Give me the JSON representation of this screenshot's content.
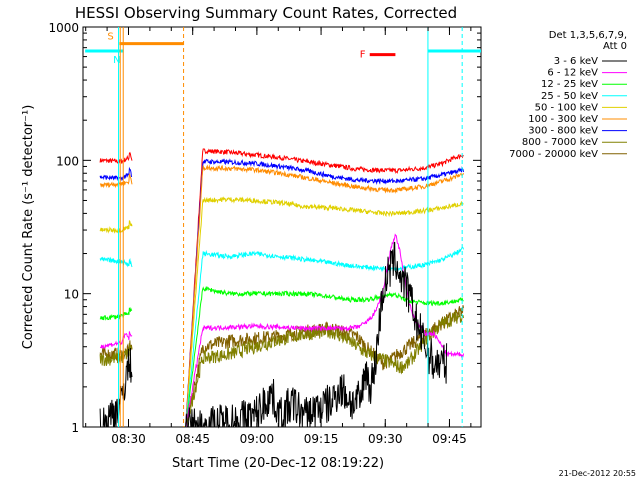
{
  "chart_data": {
    "type": "line",
    "title": "HESSI Observing Summary Count Rates, Corrected",
    "xlabel": "Start Time (20-Dec-12 08:19:22)",
    "ylabel": "Corrected Count Rate (s⁻¹ detector⁻¹)",
    "yscale": "log",
    "ylim": [
      1,
      1000
    ],
    "xlim_minutes": [
      0,
      93
    ],
    "xticks": [
      {
        "label": "08:30",
        "min": 10.63
      },
      {
        "label": "08:45",
        "min": 25.63
      },
      {
        "label": "09:00",
        "min": 40.63
      },
      {
        "label": "09:15",
        "min": 55.63
      },
      {
        "label": "09:30",
        "min": 70.63
      },
      {
        "label": "09:45",
        "min": 85.63
      }
    ],
    "yticks": [
      {
        "label": "1",
        "v": 1
      },
      {
        "label": "10",
        "v": 10
      },
      {
        "label": "100",
        "v": 100
      },
      {
        "label": "1000",
        "v": 1000
      }
    ],
    "legend_header": [
      "Det 1,3,5,6,7,9,",
      "Att 0"
    ],
    "legend_placement": "right",
    "series": [
      {
        "name": "3 - 6 keV",
        "color": "#000000",
        "x": [
          4,
          9,
          10,
          11,
          24,
          28,
          40,
          41,
          44,
          46,
          49,
          52,
          55,
          58,
          60,
          63,
          65,
          66,
          67,
          68,
          69,
          70,
          71,
          72,
          73,
          74,
          75,
          76,
          77,
          78,
          80,
          82,
          84,
          85
        ],
        "y": [
          1,
          1.5,
          2.5,
          3,
          1,
          1,
          1.2,
          1.3,
          1.8,
          1.2,
          1.5,
          1.2,
          1.4,
          1.5,
          2,
          1.5,
          1.6,
          2.8,
          2,
          2.5,
          5,
          10,
          13,
          16,
          18,
          14,
          12,
          10,
          8,
          6,
          4,
          3,
          3,
          3
        ]
      },
      {
        "name": "6 - 12 keV",
        "color": "#ff00ff",
        "x": [
          4,
          9,
          10,
          11,
          24,
          28,
          34,
          40,
          46,
          52,
          58,
          62,
          64,
          66,
          68,
          70,
          71,
          72,
          73,
          74,
          75,
          76,
          77,
          78,
          80,
          82,
          84,
          85,
          89
        ],
        "y": [
          4,
          4.3,
          5,
          4.5,
          1,
          5.5,
          5.6,
          5.7,
          5.6,
          5.5,
          5.5,
          5.5,
          5.6,
          6,
          7,
          10,
          15,
          22,
          28,
          21,
          14,
          9,
          7,
          6,
          5,
          5,
          4,
          3.5,
          3.5
        ]
      },
      {
        "name": "12 - 25 keV",
        "color": "#00ff00",
        "x": [
          4,
          9,
          10,
          11,
          24,
          28,
          34,
          40,
          46,
          52,
          58,
          62,
          66,
          70,
          72,
          74,
          76,
          80,
          84,
          89
        ],
        "y": [
          6.5,
          6.8,
          7,
          7,
          1,
          11,
          10,
          10,
          10,
          10,
          9.5,
          9,
          9,
          9.5,
          10,
          9.5,
          8.8,
          8.5,
          8.5,
          9
        ]
      },
      {
        "name": "25 - 50 keV",
        "color": "#00ffff",
        "x": [
          4,
          9,
          10,
          11,
          24,
          28,
          34,
          40,
          46,
          52,
          58,
          64,
          70,
          74,
          80,
          84,
          87,
          89
        ],
        "y": [
          18,
          17.5,
          17,
          16,
          1,
          20,
          19,
          20,
          19,
          18,
          17,
          16,
          15.5,
          15.5,
          16.5,
          18,
          20,
          22
        ]
      },
      {
        "name": "50 - 100 keV",
        "color": "#e0d000",
        "x": [
          4,
          9,
          10,
          11,
          24,
          28,
          34,
          40,
          46,
          52,
          58,
          64,
          70,
          74,
          80,
          84,
          87,
          89
        ],
        "y": [
          30,
          30,
          31,
          32,
          1,
          50,
          51,
          50,
          48,
          45,
          44,
          42,
          40,
          40,
          42,
          44,
          46,
          48
        ]
      },
      {
        "name": "100 - 300 keV",
        "color": "#ff8c00",
        "x": [
          4,
          9,
          10,
          11,
          24,
          28,
          34,
          40,
          46,
          52,
          58,
          64,
          70,
          74,
          80,
          84,
          87,
          89
        ],
        "y": [
          65,
          67,
          68,
          70,
          1,
          88,
          87,
          85,
          80,
          74,
          68,
          63,
          60,
          60,
          64,
          70,
          75,
          80
        ]
      },
      {
        "name": "300 - 800 keV",
        "color": "#0000ff",
        "x": [
          4,
          9,
          10,
          11,
          24,
          28,
          34,
          40,
          46,
          52,
          58,
          64,
          70,
          74,
          80,
          84,
          87,
          89
        ],
        "y": [
          75,
          73,
          76,
          78,
          1,
          98,
          97,
          95,
          90,
          84,
          76,
          71,
          70,
          70,
          73,
          78,
          82,
          85
        ]
      },
      {
        "name": "800 - 7000 keV",
        "color": "#808000",
        "x": [
          4,
          9,
          10,
          11,
          24,
          28,
          34,
          40,
          46,
          52,
          58,
          62,
          66,
          70,
          72,
          74,
          76,
          80,
          84,
          89
        ],
        "y": [
          3.2,
          3.3,
          3.5,
          3.6,
          1,
          3.3,
          3.5,
          4,
          4.5,
          5,
          5.2,
          4.5,
          3.6,
          3.2,
          3,
          2.8,
          3,
          4.5,
          6,
          7
        ]
      },
      {
        "name": "7000 - 20000 keV",
        "color": "#806000",
        "x": [
          4,
          9,
          10,
          11,
          24,
          28,
          34,
          40,
          46,
          52,
          58,
          62,
          64,
          66,
          68,
          70,
          72,
          74,
          76,
          80,
          84,
          89
        ],
        "y": [
          3.5,
          3.5,
          3.6,
          3.7,
          1,
          4,
          4.4,
          4.6,
          4.8,
          5.2,
          5.5,
          5,
          4.8,
          4,
          3.5,
          3,
          3.2,
          3.6,
          4,
          5,
          6,
          7.5
        ]
      },
      {
        "name": "",
        "color": "#ff0000",
        "x": [
          4,
          9,
          10,
          11,
          24,
          28,
          34,
          40,
          46,
          52,
          58,
          64,
          70,
          74,
          80,
          84,
          87,
          89
        ],
        "y": [
          100,
          98,
          102,
          105,
          1,
          118,
          115,
          110,
          105,
          98,
          92,
          86,
          84,
          84,
          88,
          95,
          105,
          110
        ]
      }
    ],
    "markers": {
      "S": {
        "label": "S",
        "color": "#ff8c00",
        "x_start": 8.5,
        "x_end": 23.5,
        "level": 750
      },
      "N": {
        "label": "N",
        "color": "#00ffff",
        "x_start": 0.5,
        "x_end": 9.5,
        "level": 660
      },
      "N2": {
        "color": "#00ffff",
        "x_start": 80.5,
        "x_end": 93,
        "level": 660
      },
      "F": {
        "label": "F",
        "color": "#ff0000",
        "x_start": 67,
        "x_end": 73,
        "level": 620
      }
    },
    "vlines": [
      {
        "x": 8.3,
        "color": "#00ffff",
        "style": "solid"
      },
      {
        "x": 8.7,
        "color": "#ff8c00",
        "style": "solid"
      },
      {
        "x": 9.4,
        "color": "#ff8c00",
        "style": "solid"
      },
      {
        "x": 23.5,
        "color": "#ff8c00",
        "style": "dashed"
      },
      {
        "x": 80.6,
        "color": "#00ffff",
        "style": "solid"
      },
      {
        "x": 88.6,
        "color": "#00ffff",
        "style": "dashed"
      }
    ]
  },
  "footer_date": "21-Dec-2012 20:55"
}
